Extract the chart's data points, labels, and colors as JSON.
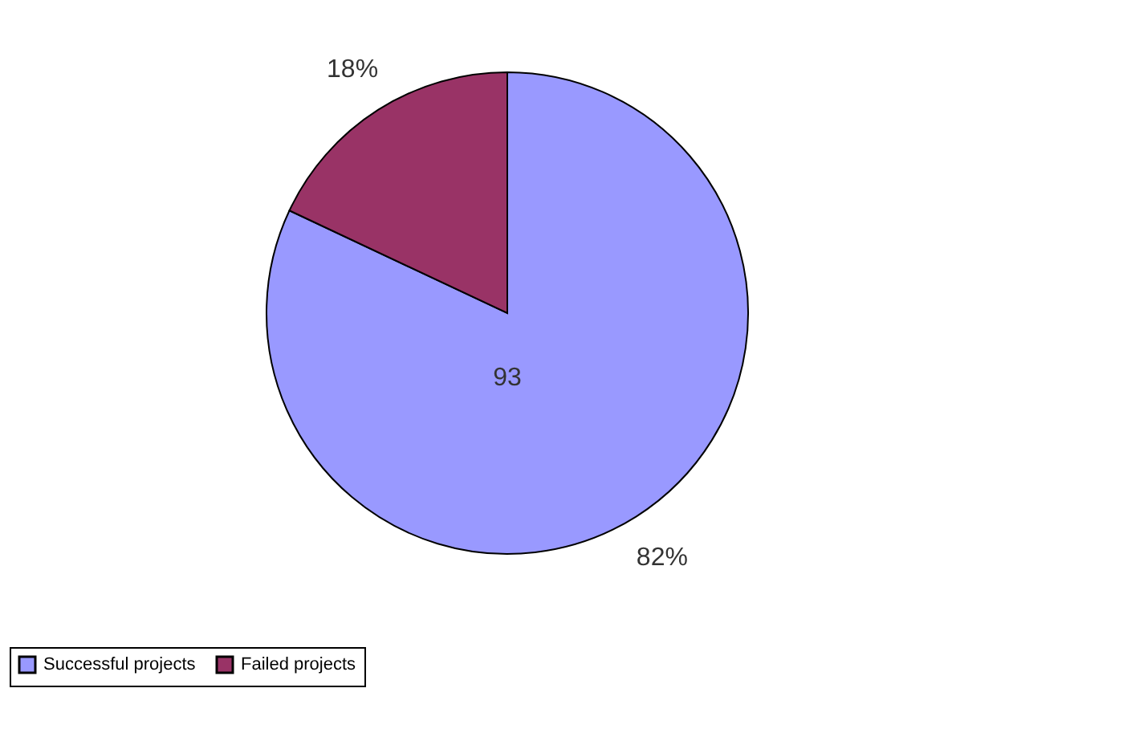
{
  "chart_data": {
    "type": "pie",
    "categories": [
      "Successful projects",
      "Failed projects"
    ],
    "values": [
      82,
      18
    ],
    "colors": [
      "#9999ff",
      "#993366"
    ],
    "value_labels": [
      "82%",
      "18%"
    ],
    "annotations": [
      "93"
    ],
    "legend": "bottom"
  }
}
